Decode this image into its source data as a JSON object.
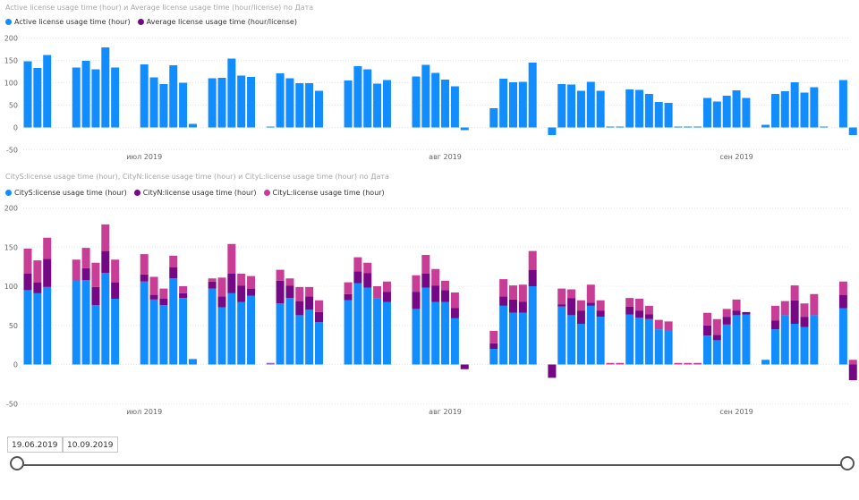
{
  "colors": {
    "blue": "#118dff",
    "darkpurple": "#750985",
    "magenta": "#c83d95",
    "grid": "#e6e6e6",
    "axis": "#666666"
  },
  "chart_data": [
    {
      "type": "bar",
      "title": "Active license usage time (hour) и Average license usage time (hour/license) по Дата",
      "legend_position": "top-left",
      "legend": [
        {
          "name": "Active license usage time (hour)",
          "color": "#118dff"
        },
        {
          "name": "Average license usage time (hour/license)",
          "color": "#750985"
        }
      ],
      "ylim": [
        -50,
        200
      ],
      "yticks": [
        -50,
        0,
        50,
        100,
        150,
        200
      ],
      "grid": true,
      "x_tick_labels": [
        {
          "label": "июл 2019",
          "index": 12
        },
        {
          "label": "авг 2019",
          "index": 43
        },
        {
          "label": "сен 2019",
          "index": 73
        }
      ],
      "series": [
        {
          "name": "Active license usage time (hour)",
          "values": [
            148,
            133,
            162,
            0,
            0,
            134,
            149,
            130,
            179,
            134,
            0,
            0,
            141,
            112,
            97,
            139,
            100,
            8,
            0,
            110,
            111,
            154,
            116,
            113,
            0,
            2,
            121,
            110,
            99,
            99,
            82,
            0,
            0,
            105,
            137,
            130,
            98,
            106,
            0,
            0,
            114,
            140,
            122,
            107,
            92,
            -6,
            0,
            0,
            43,
            109,
            101,
            102,
            145,
            0,
            -17,
            97,
            96,
            82,
            102,
            82,
            2,
            2,
            85,
            84,
            75,
            57,
            55,
            2,
            2,
            2,
            66,
            58,
            71,
            83,
            66,
            0,
            6,
            75,
            81,
            101,
            78,
            90,
            2,
            0,
            106,
            -17
          ]
        }
      ]
    },
    {
      "type": "bar",
      "stacked": true,
      "title": "CityS:license usage time (hour), CityN:license usage time (hour) и CityL:license usage time (hour) по Дата",
      "legend_position": "top-left",
      "legend": [
        {
          "name": "CityS:license usage time (hour)",
          "color": "#118dff"
        },
        {
          "name": "CityN:license usage time (hour)",
          "color": "#750985"
        },
        {
          "name": "CityL:license usage time (hour)",
          "color": "#c83d95"
        }
      ],
      "ylim": [
        -50,
        200
      ],
      "yticks": [
        -50,
        0,
        50,
        100,
        150,
        200
      ],
      "grid": true,
      "x_tick_labels": [
        {
          "label": "июл 2019",
          "index": 12
        },
        {
          "label": "авг 2019",
          "index": 43
        },
        {
          "label": "сен 2019",
          "index": 73
        }
      ],
      "series": [
        {
          "name": "CityS:license usage time (hour)",
          "values": [
            95,
            91,
            99,
            0,
            0,
            108,
            108,
            76,
            117,
            84,
            0,
            0,
            106,
            83,
            76,
            110,
            85,
            7,
            0,
            97,
            73,
            91,
            80,
            88,
            0,
            1,
            78,
            85,
            63,
            70,
            54,
            0,
            0,
            82,
            104,
            98,
            85,
            80,
            0,
            0,
            71,
            98,
            80,
            80,
            59,
            0,
            0,
            0,
            20,
            75,
            66,
            66,
            100,
            0,
            0,
            74,
            63,
            52,
            75,
            61,
            0,
            0,
            64,
            60,
            58,
            45,
            44,
            0,
            0,
            0,
            37,
            31,
            51,
            63,
            64,
            0,
            6,
            45,
            63,
            52,
            48,
            63,
            0,
            0,
            72,
            0
          ]
        },
        {
          "name": "CityN:license usage time (hour)",
          "values": [
            21,
            14,
            36,
            0,
            0,
            0,
            15,
            23,
            28,
            21,
            0,
            0,
            9,
            6,
            8,
            14,
            6,
            0,
            0,
            9,
            14,
            25,
            21,
            9,
            0,
            0,
            29,
            16,
            18,
            17,
            13,
            0,
            0,
            8,
            15,
            19,
            0,
            13,
            0,
            0,
            22,
            18,
            21,
            15,
            13,
            -6,
            0,
            0,
            7,
            12,
            17,
            14,
            21,
            0,
            -17,
            3,
            22,
            17,
            4,
            8,
            0,
            0,
            10,
            9,
            6,
            0,
            0,
            0,
            0,
            0,
            13,
            7,
            10,
            6,
            3,
            0,
            0,
            11,
            0,
            30,
            13,
            0,
            0,
            0,
            17,
            -20
          ]
        },
        {
          "name": "CityL:license usage time (hour)",
          "values": [
            32,
            28,
            27,
            0,
            0,
            26,
            26,
            31,
            34,
            29,
            0,
            0,
            26,
            23,
            13,
            15,
            9,
            0,
            0,
            4,
            24,
            38,
            15,
            16,
            0,
            1,
            14,
            9,
            18,
            12,
            15,
            0,
            0,
            15,
            18,
            13,
            15,
            13,
            0,
            0,
            21,
            24,
            21,
            12,
            20,
            0,
            0,
            0,
            16,
            22,
            18,
            22,
            24,
            0,
            0,
            20,
            11,
            13,
            23,
            13,
            2,
            2,
            11,
            15,
            11,
            12,
            11,
            2,
            2,
            2,
            16,
            20,
            10,
            14,
            0,
            0,
            0,
            19,
            18,
            19,
            17,
            27,
            0,
            0,
            17,
            6
          ]
        }
      ]
    }
  ],
  "date_range": {
    "start": "19.06.2019",
    "end": "10.09.2019"
  }
}
